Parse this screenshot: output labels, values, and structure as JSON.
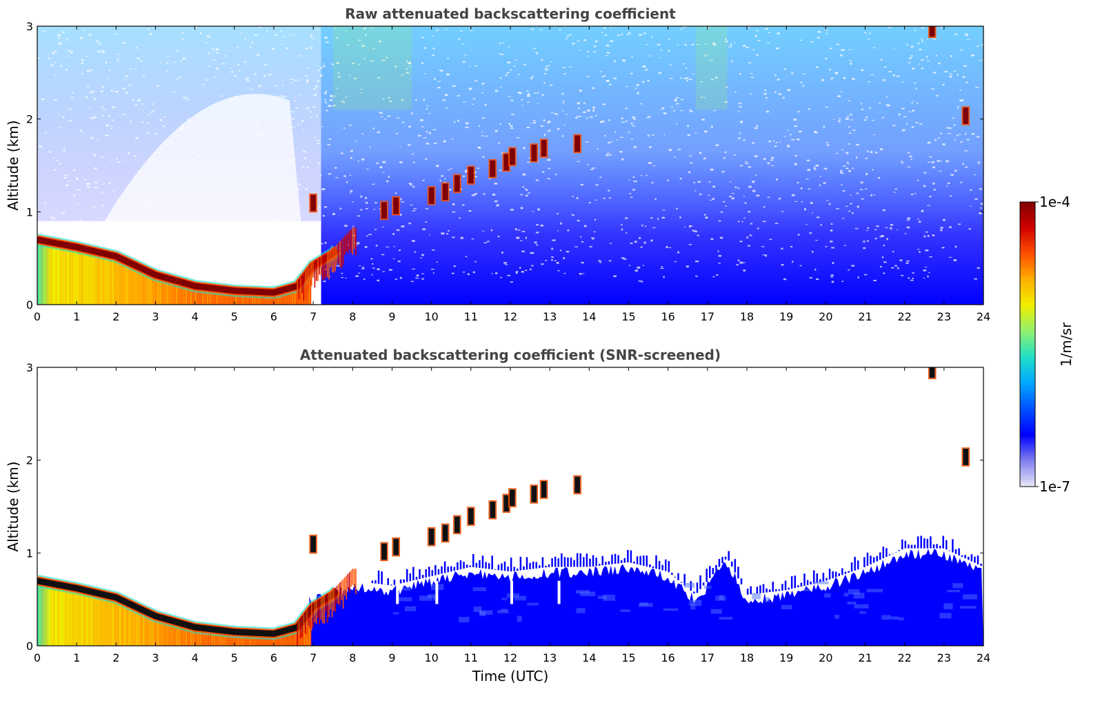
{
  "chart_data": [
    {
      "type": "heatmap",
      "title": "Raw attenuated backscattering coefficient",
      "xlabel": "",
      "ylabel": "Altitude (km)",
      "xlim": [
        0,
        24
      ],
      "ylim": [
        0,
        3
      ],
      "x_ticks": [
        "0",
        "1",
        "2",
        "3",
        "4",
        "5",
        "6",
        "7",
        "8",
        "9",
        "10",
        "11",
        "12",
        "13",
        "14",
        "15",
        "16",
        "17",
        "18",
        "19",
        "20",
        "21",
        "22",
        "23",
        "24"
      ],
      "y_ticks": [
        "0",
        "1",
        "2",
        "3"
      ],
      "boundary_layer_top_km": [
        {
          "t": 0,
          "z": 0.7
        },
        {
          "t": 1,
          "z": 0.62
        },
        {
          "t": 2,
          "z": 0.52
        },
        {
          "t": 3,
          "z": 0.32
        },
        {
          "t": 4,
          "z": 0.2
        },
        {
          "t": 5,
          "z": 0.15
        },
        {
          "t": 6,
          "z": 0.13
        },
        {
          "t": 6.6,
          "z": 0.2
        },
        {
          "t": 7,
          "z": 0.42
        },
        {
          "t": 7.5,
          "z": 0.55
        },
        {
          "t": 8,
          "z": 0.78
        }
      ],
      "cloud_elements": [
        {
          "t": 7.0,
          "z": 1.08
        },
        {
          "t": 8.8,
          "z": 1.0
        },
        {
          "t": 9.1,
          "z": 1.05
        },
        {
          "t": 10.0,
          "z": 1.16
        },
        {
          "t": 10.35,
          "z": 1.2
        },
        {
          "t": 10.65,
          "z": 1.29
        },
        {
          "t": 11.0,
          "z": 1.38
        },
        {
          "t": 11.55,
          "z": 1.45
        },
        {
          "t": 11.9,
          "z": 1.52
        },
        {
          "t": 12.05,
          "z": 1.58
        },
        {
          "t": 12.6,
          "z": 1.62
        },
        {
          "t": 12.85,
          "z": 1.67
        },
        {
          "t": 13.7,
          "z": 1.72
        },
        {
          "t": 23.55,
          "z": 2.02
        },
        {
          "t": 22.7,
          "z": 2.96
        }
      ]
    },
    {
      "type": "heatmap",
      "title": "Attenuated backscattering coefficient (SNR-screened)",
      "xlabel": "Time (UTC)",
      "ylabel": "Altitude (km)",
      "xlim": [
        0,
        24
      ],
      "ylim": [
        0,
        3
      ],
      "x_ticks": [
        "0",
        "1",
        "2",
        "3",
        "4",
        "5",
        "6",
        "7",
        "8",
        "9",
        "10",
        "11",
        "12",
        "13",
        "14",
        "15",
        "16",
        "17",
        "18",
        "19",
        "20",
        "21",
        "22",
        "23",
        "24"
      ],
      "y_ticks": [
        "0",
        "1",
        "2",
        "3"
      ],
      "screened_aerosol_top_km": [
        {
          "t": 7,
          "z": 0.55
        },
        {
          "t": 8,
          "z": 0.7
        },
        {
          "t": 9,
          "z": 0.65
        },
        {
          "t": 10,
          "z": 0.75
        },
        {
          "t": 11,
          "z": 0.85
        },
        {
          "t": 12,
          "z": 0.8
        },
        {
          "t": 13,
          "z": 0.85
        },
        {
          "t": 14,
          "z": 0.85
        },
        {
          "t": 15,
          "z": 0.9
        },
        {
          "t": 16,
          "z": 0.8
        },
        {
          "t": 16.7,
          "z": 0.55
        },
        {
          "t": 17.5,
          "z": 0.95
        },
        {
          "t": 18,
          "z": 0.55
        },
        {
          "t": 19,
          "z": 0.6
        },
        {
          "t": 20,
          "z": 0.7
        },
        {
          "t": 21,
          "z": 0.85
        },
        {
          "t": 22,
          "z": 1.05
        },
        {
          "t": 23,
          "z": 1.05
        },
        {
          "t": 24,
          "z": 0.85
        }
      ]
    }
  ],
  "colorbar": {
    "label": "1/m/sr",
    "max_label": "1e-4",
    "min_label": "1e-7",
    "scale": "log",
    "colors": [
      "#e8e8f8",
      "#8080f0",
      "#0000ff",
      "#0050ff",
      "#00a8ff",
      "#20e0c8",
      "#90f070",
      "#f0f000",
      "#ffb000",
      "#ff5000",
      "#d00000",
      "#800000"
    ]
  }
}
